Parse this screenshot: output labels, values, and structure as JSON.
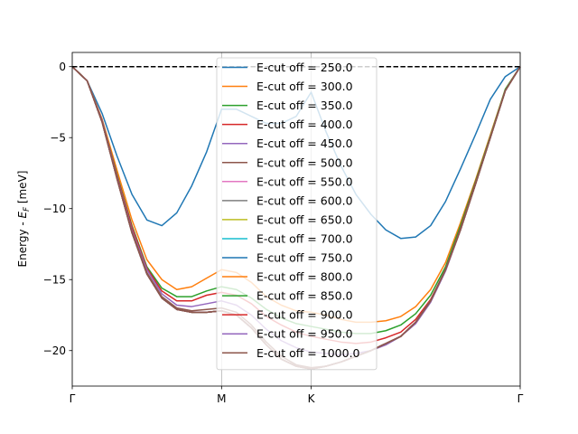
{
  "chart_data": {
    "type": "line",
    "title": "",
    "xlabel": "",
    "ylabel_prefix": "Energy - ",
    "ylabel_symbol": "E",
    "ylabel_sub": "F",
    "ylabel_unit": " [meV]",
    "x_ticks": [
      {
        "x": 0,
        "label": "Γ"
      },
      {
        "x": 10,
        "label": "M"
      },
      {
        "x": 16,
        "label": "K"
      },
      {
        "x": 30,
        "label": "Γ"
      }
    ],
    "xlim": [
      0,
      30
    ],
    "ylim": [
      -22.5,
      1.0
    ],
    "y_ticks": [
      0,
      -5,
      -10,
      -15,
      -20
    ],
    "y_tick_labels": [
      "0",
      "−5",
      "−10",
      "−15",
      "−20"
    ],
    "reference_line": {
      "y": 0,
      "style": "dashed",
      "color": "#000000"
    },
    "legend_location": "center",
    "x": [
      0,
      1,
      2,
      3,
      4,
      5,
      6,
      7,
      8,
      9,
      10,
      11,
      12,
      13,
      14,
      15,
      16,
      17,
      18,
      19,
      20,
      21,
      22,
      23,
      24,
      25,
      26,
      27,
      28,
      29,
      30
    ],
    "series": [
      {
        "name": "E-cut off = 250.0",
        "color": "#1f77b4",
        "values": [
          0,
          -1.0,
          -3.3,
          -6.3,
          -9.0,
          -10.8,
          -11.2,
          -10.3,
          -8.4,
          -6.0,
          -3.0,
          -3.0,
          -3.5,
          -4.0,
          -4.0,
          -3.5,
          -1.8,
          -4.6,
          -7.0,
          -9.0,
          -10.4,
          -11.5,
          -12.1,
          -12.0,
          -11.2,
          -9.5,
          -7.2,
          -4.8,
          -2.3,
          -0.7,
          0
        ]
      },
      {
        "name": "E-cut off = 300.0",
        "color": "#ff7f0e",
        "values": [
          0,
          -1.0,
          -3.7,
          -7.3,
          -10.8,
          -13.6,
          -15.0,
          -15.7,
          -15.5,
          -14.9,
          -14.3,
          -14.5,
          -15.2,
          -16.2,
          -16.8,
          -17.2,
          -17.3,
          -17.5,
          -17.8,
          -18.0,
          -18.0,
          -17.9,
          -17.6,
          -16.9,
          -15.7,
          -13.8,
          -11.0,
          -8.0,
          -4.8,
          -1.6,
          0
        ]
      },
      {
        "name": "E-cut off = 350.0",
        "color": "#2ca02c",
        "values": [
          0,
          -1.0,
          -3.8,
          -7.6,
          -11.2,
          -14.1,
          -15.6,
          -16.2,
          -16.2,
          -15.8,
          -15.5,
          -15.7,
          -16.3,
          -17.1,
          -17.7,
          -18.1,
          -18.3,
          -18.5,
          -18.7,
          -18.8,
          -18.8,
          -18.6,
          -18.2,
          -17.4,
          -16.1,
          -14.1,
          -11.2,
          -8.1,
          -4.9,
          -1.6,
          0
        ]
      },
      {
        "name": "E-cut off = 400.0",
        "color": "#d62728",
        "values": [
          0,
          -1.0,
          -3.8,
          -7.7,
          -11.3,
          -14.2,
          -15.8,
          -16.5,
          -16.5,
          -16.1,
          -15.9,
          -16.1,
          -16.7,
          -17.6,
          -18.2,
          -18.7,
          -19.0,
          -19.2,
          -19.4,
          -19.5,
          -19.4,
          -19.1,
          -18.7,
          -17.8,
          -16.4,
          -14.3,
          -11.4,
          -8.2,
          -5.0,
          -1.7,
          0
        ]
      },
      {
        "name": "E-cut off = 450.0",
        "color": "#9467bd",
        "values": [
          0,
          -1.0,
          -3.8,
          -7.8,
          -11.5,
          -14.3,
          -16.0,
          -16.8,
          -16.9,
          -16.7,
          -16.5,
          -16.8,
          -17.5,
          -18.5,
          -19.3,
          -19.8,
          -20.1,
          -20.2,
          -20.3,
          -20.2,
          -20.0,
          -19.6,
          -19.0,
          -18.1,
          -16.6,
          -14.4,
          -11.5,
          -8.3,
          -5.0,
          -1.7,
          0
        ]
      },
      {
        "name": "E-cut off = 500.0",
        "color": "#8c564b",
        "values": [
          0,
          -1.0,
          -3.9,
          -7.9,
          -11.6,
          -14.5,
          -16.2,
          -17.0,
          -17.2,
          -17.1,
          -17.0,
          -17.3,
          -18.2,
          -19.4,
          -20.4,
          -21.0,
          -21.2,
          -21.1,
          -20.8,
          -20.4,
          -20.0,
          -19.5,
          -19.0,
          -18.0,
          -16.5,
          -14.3,
          -11.5,
          -8.3,
          -5.0,
          -1.7,
          0
        ]
      },
      {
        "name": "E-cut off = 550.0",
        "color": "#e377c2",
        "values": [
          0,
          -1.0,
          -3.9,
          -7.9,
          -11.7,
          -14.6,
          -16.3,
          -17.1,
          -17.3,
          -17.3,
          -17.2,
          -17.5,
          -18.4,
          -19.6,
          -20.6,
          -21.1,
          -21.3,
          -21.1,
          -20.8,
          -20.4,
          -20.0,
          -19.5,
          -19.0,
          -18.0,
          -16.5,
          -14.3,
          -11.5,
          -8.3,
          -5.0,
          -1.7,
          0
        ]
      },
      {
        "name": "E-cut off = 600.0",
        "color": "#7f7f7f",
        "values": [
          0,
          -1.0,
          -3.9,
          -7.9,
          -11.7,
          -14.6,
          -16.3,
          -17.1,
          -17.3,
          -17.3,
          -17.2,
          -17.5,
          -18.4,
          -19.6,
          -20.6,
          -21.1,
          -21.3,
          -21.1,
          -20.8,
          -20.4,
          -20.0,
          -19.5,
          -19.0,
          -18.0,
          -16.5,
          -14.3,
          -11.5,
          -8.3,
          -5.0,
          -1.7,
          0
        ]
      },
      {
        "name": "E-cut off = 650.0",
        "color": "#bcbd22",
        "values": [
          0,
          -1.0,
          -3.9,
          -7.9,
          -11.7,
          -14.6,
          -16.3,
          -17.1,
          -17.3,
          -17.3,
          -17.2,
          -17.5,
          -18.4,
          -19.6,
          -20.6,
          -21.1,
          -21.3,
          -21.1,
          -20.8,
          -20.4,
          -20.0,
          -19.5,
          -19.0,
          -18.0,
          -16.5,
          -14.3,
          -11.5,
          -8.3,
          -5.0,
          -1.7,
          0
        ]
      },
      {
        "name": "E-cut off = 700.0",
        "color": "#17becf",
        "values": [
          0,
          -1.0,
          -3.9,
          -7.9,
          -11.7,
          -14.6,
          -16.3,
          -17.1,
          -17.3,
          -17.3,
          -17.2,
          -17.5,
          -18.4,
          -19.6,
          -20.6,
          -21.1,
          -21.3,
          -21.1,
          -20.8,
          -20.4,
          -20.0,
          -19.5,
          -19.0,
          -18.0,
          -16.5,
          -14.3,
          -11.5,
          -8.3,
          -5.0,
          -1.7,
          0
        ]
      },
      {
        "name": "E-cut off = 750.0",
        "color": "#1f77b4",
        "values": [
          0,
          -1.0,
          -3.9,
          -7.9,
          -11.7,
          -14.6,
          -16.3,
          -17.1,
          -17.3,
          -17.3,
          -17.2,
          -17.5,
          -18.4,
          -19.6,
          -20.6,
          -21.1,
          -21.3,
          -21.1,
          -20.8,
          -20.4,
          -20.0,
          -19.5,
          -19.0,
          -18.0,
          -16.5,
          -14.3,
          -11.5,
          -8.3,
          -5.0,
          -1.7,
          0
        ]
      },
      {
        "name": "E-cut off = 800.0",
        "color": "#ff7f0e",
        "values": [
          0,
          -1.0,
          -3.9,
          -7.9,
          -11.7,
          -14.6,
          -16.3,
          -17.1,
          -17.3,
          -17.3,
          -17.2,
          -17.5,
          -18.4,
          -19.6,
          -20.6,
          -21.1,
          -21.3,
          -21.1,
          -20.8,
          -20.4,
          -20.0,
          -19.5,
          -19.0,
          -18.0,
          -16.5,
          -14.3,
          -11.5,
          -8.3,
          -5.0,
          -1.7,
          0
        ]
      },
      {
        "name": "E-cut off = 850.0",
        "color": "#2ca02c",
        "values": [
          0,
          -1.0,
          -3.9,
          -7.9,
          -11.7,
          -14.6,
          -16.3,
          -17.1,
          -17.3,
          -17.3,
          -17.2,
          -17.5,
          -18.4,
          -19.6,
          -20.6,
          -21.1,
          -21.3,
          -21.1,
          -20.8,
          -20.4,
          -20.0,
          -19.5,
          -19.0,
          -18.0,
          -16.5,
          -14.3,
          -11.5,
          -8.3,
          -5.0,
          -1.7,
          0
        ]
      },
      {
        "name": "E-cut off = 900.0",
        "color": "#d62728",
        "values": [
          0,
          -1.0,
          -3.9,
          -7.9,
          -11.7,
          -14.6,
          -16.3,
          -17.1,
          -17.3,
          -17.3,
          -17.2,
          -17.5,
          -18.4,
          -19.6,
          -20.6,
          -21.1,
          -21.3,
          -21.1,
          -20.8,
          -20.4,
          -20.0,
          -19.5,
          -19.0,
          -18.0,
          -16.5,
          -14.3,
          -11.5,
          -8.3,
          -5.0,
          -1.7,
          0
        ]
      },
      {
        "name": "E-cut off = 950.0",
        "color": "#9467bd",
        "values": [
          0,
          -1.0,
          -3.9,
          -7.9,
          -11.7,
          -14.6,
          -16.3,
          -17.1,
          -17.3,
          -17.3,
          -17.2,
          -17.5,
          -18.4,
          -19.6,
          -20.6,
          -21.1,
          -21.3,
          -21.1,
          -20.8,
          -20.4,
          -20.0,
          -19.5,
          -19.0,
          -18.0,
          -16.5,
          -14.3,
          -11.5,
          -8.3,
          -5.0,
          -1.7,
          0
        ]
      },
      {
        "name": "E-cut off = 1000.0",
        "color": "#8c564b",
        "values": [
          0,
          -1.0,
          -3.9,
          -7.9,
          -11.7,
          -14.6,
          -16.3,
          -17.1,
          -17.3,
          -17.3,
          -17.2,
          -17.5,
          -18.4,
          -19.6,
          -20.6,
          -21.1,
          -21.3,
          -21.1,
          -20.8,
          -20.4,
          -20.0,
          -19.5,
          -19.0,
          -18.0,
          -16.5,
          -14.3,
          -11.5,
          -8.3,
          -5.0,
          -1.7,
          0
        ]
      }
    ]
  }
}
